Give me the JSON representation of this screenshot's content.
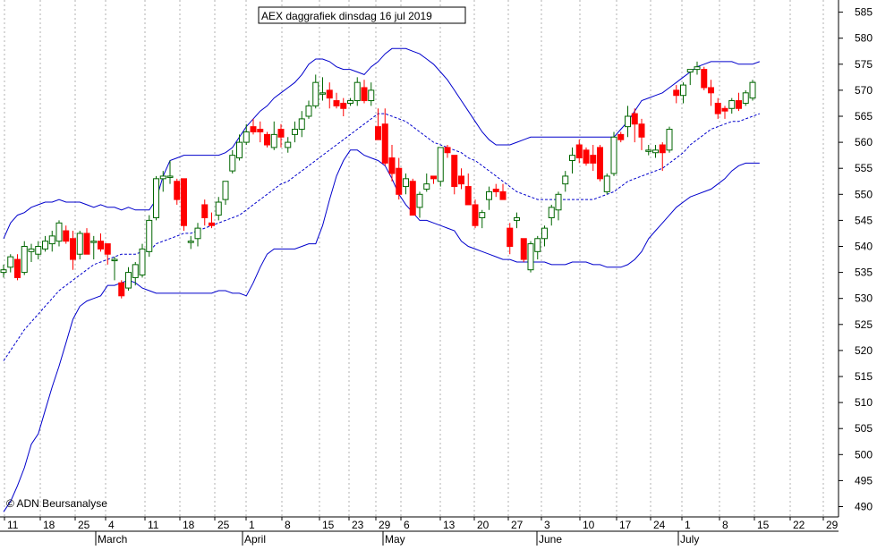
{
  "chart_data": {
    "type": "candlestick",
    "title": "AEX daggrafiek dinsdag 16 jul 2019",
    "copyright": "© ADN Beursanalyse",
    "ylim": [
      487,
      588
    ],
    "y_ticks": [
      490,
      495,
      500,
      505,
      510,
      515,
      520,
      525,
      530,
      535,
      540,
      545,
      550,
      555,
      560,
      565,
      570,
      575,
      580,
      585
    ],
    "y_tick_labels": [
      "490",
      "495",
      "500",
      "505",
      "510",
      "515",
      "520",
      "525",
      "530",
      "535",
      "540",
      "545",
      "550",
      "555",
      "560",
      "565",
      "570",
      "575",
      "580",
      "585"
    ],
    "x_day_labels": [
      "11",
      "18",
      "25",
      "4",
      "11",
      "18",
      "25",
      "1",
      "8",
      "15",
      "23",
      "29",
      "6",
      "13",
      "20",
      "27",
      "3",
      "10",
      "17",
      "24",
      "1",
      "8",
      "15",
      "22",
      "29"
    ],
    "x_month_labels": [
      "March",
      "April",
      "May",
      "June",
      "July"
    ],
    "grid": true,
    "colors": {
      "up": "#006600",
      "down": "#ff0000",
      "band": "#0000cc",
      "grid": "#b0b0b0"
    },
    "candles": [
      [
        535.0,
        536.5,
        534.0,
        535.5
      ],
      [
        536.0,
        538.5,
        535.0,
        538.0
      ],
      [
        537.5,
        538.5,
        533.5,
        534.0
      ],
      [
        535.0,
        541.0,
        534.5,
        540.0
      ],
      [
        539.0,
        540.5,
        537.0,
        539.5
      ],
      [
        538.5,
        541.0,
        537.5,
        540.0
      ],
      [
        539.5,
        542.0,
        539.0,
        541.0
      ],
      [
        540.5,
        543.0,
        539.0,
        542.0
      ],
      [
        541.0,
        545.0,
        540.0,
        544.5
      ],
      [
        543.0,
        544.0,
        540.5,
        541.0
      ],
      [
        541.5,
        543.0,
        535.5,
        537.5
      ],
      [
        538.5,
        543.0,
        537.5,
        542.5
      ],
      [
        542.5,
        543.5,
        538.5,
        538.5
      ],
      [
        541.0,
        542.0,
        537.5,
        541.0
      ],
      [
        541.0,
        542.5,
        539.0,
        539.5
      ],
      [
        540.5,
        540.5,
        536.5,
        538.5
      ],
      [
        537.5,
        538.0,
        533.5,
        537.5
      ],
      [
        533.0,
        533.5,
        530.0,
        530.5
      ],
      [
        532.0,
        536.0,
        531.5,
        535.0
      ],
      [
        534.0,
        537.0,
        532.5,
        536.5
      ],
      [
        534.5,
        540.5,
        534.0,
        539.5
      ],
      [
        539.0,
        546.0,
        538.0,
        545.0
      ],
      [
        545.5,
        553.5,
        545.0,
        553.0
      ],
      [
        553.0,
        554.5,
        550.5,
        553.5
      ],
      [
        553.5,
        556.5,
        552.0,
        553.5
      ],
      [
        552.5,
        553.0,
        548.0,
        549.0
      ],
      [
        553.0,
        553.0,
        543.0,
        544.0
      ],
      [
        541.0,
        542.0,
        539.5,
        541.0
      ],
      [
        541.5,
        544.5,
        540.0,
        543.5
      ],
      [
        548.0,
        549.0,
        544.0,
        545.5
      ],
      [
        544.5,
        546.5,
        543.5,
        544.0
      ],
      [
        546.0,
        549.5,
        545.0,
        548.5
      ],
      [
        549.0,
        552.5,
        548.0,
        552.5
      ],
      [
        554.5,
        558.5,
        554.0,
        557.5
      ],
      [
        557.0,
        561.5,
        556.5,
        560.0
      ],
      [
        560.0,
        563.5,
        559.5,
        562.0
      ],
      [
        563.0,
        564.5,
        561.5,
        562.0
      ],
      [
        562.5,
        564.0,
        560.0,
        562.0
      ],
      [
        561.5,
        562.0,
        559.0,
        559.5
      ],
      [
        559.0,
        564.0,
        558.5,
        561.5
      ],
      [
        562.5,
        563.5,
        559.0,
        561.0
      ],
      [
        559.0,
        561.0,
        558.0,
        560.0
      ],
      [
        561.5,
        564.0,
        560.0,
        562.5
      ],
      [
        562.5,
        566.0,
        561.0,
        564.5
      ],
      [
        565.0,
        568.0,
        564.5,
        567.0
      ],
      [
        567.0,
        573.0,
        566.5,
        571.5
      ],
      [
        569.5,
        572.5,
        568.0,
        569.5
      ],
      [
        570.0,
        571.5,
        566.5,
        568.5
      ],
      [
        568.0,
        569.5,
        566.5,
        567.0
      ],
      [
        567.5,
        568.5,
        565.0,
        566.5
      ],
      [
        567.5,
        568.5,
        567.0,
        568.0
      ],
      [
        568.0,
        572.5,
        567.0,
        571.5
      ],
      [
        570.5,
        572.0,
        567.5,
        568.0
      ],
      [
        568.0,
        571.5,
        567.0,
        570.0
      ],
      [
        563.0,
        566.5,
        560.5,
        560.5
      ],
      [
        563.5,
        566.5,
        555.5,
        556.0
      ],
      [
        557.0,
        559.5,
        552.5,
        554.0
      ],
      [
        555.0,
        557.0,
        549.0,
        550.0
      ],
      [
        551.5,
        554.0,
        550.0,
        553.0
      ],
      [
        552.5,
        553.0,
        546.0,
        546.0
      ],
      [
        547.5,
        550.5,
        545.5,
        550.0
      ],
      [
        551.0,
        554.0,
        550.5,
        552.0
      ],
      [
        553.5,
        553.5,
        552.0,
        553.0
      ],
      [
        552.5,
        559.0,
        551.5,
        559.0
      ],
      [
        559.0,
        559.5,
        557.0,
        558.0
      ],
      [
        557.5,
        557.5,
        550.0,
        551.5
      ],
      [
        553.5,
        555.0,
        551.0,
        552.0
      ],
      [
        551.5,
        554.0,
        548.0,
        548.0
      ],
      [
        548.0,
        549.0,
        543.5,
        544.0
      ],
      [
        545.5,
        547.0,
        543.5,
        546.5
      ],
      [
        549.0,
        551.5,
        547.0,
        550.5
      ],
      [
        551.0,
        552.0,
        549.5,
        550.5
      ],
      [
        550.5,
        552.0,
        549.0,
        549.0
      ],
      [
        543.5,
        544.5,
        538.5,
        540.0
      ],
      [
        545.0,
        546.5,
        543.5,
        545.5
      ],
      [
        541.5,
        541.5,
        537.0,
        537.5
      ],
      [
        535.5,
        541.0,
        535.0,
        540.5
      ],
      [
        539.0,
        542.0,
        537.5,
        541.5
      ],
      [
        541.5,
        544.0,
        540.0,
        543.5
      ],
      [
        545.5,
        548.0,
        544.0,
        547.5
      ],
      [
        547.0,
        550.5,
        545.0,
        550.0
      ],
      [
        552.0,
        554.5,
        550.5,
        553.5
      ],
      [
        556.5,
        559.0,
        554.0,
        557.5
      ],
      [
        559.5,
        560.5,
        556.0,
        557.0
      ],
      [
        558.5,
        559.0,
        555.5,
        556.0
      ],
      [
        557.5,
        559.5,
        554.5,
        556.0
      ],
      [
        559.0,
        559.5,
        552.5,
        553.0
      ],
      [
        550.5,
        554.0,
        550.0,
        553.5
      ],
      [
        554.0,
        562.0,
        553.5,
        561.0
      ],
      [
        561.5,
        562.0,
        560.0,
        560.5
      ],
      [
        563.0,
        567.0,
        561.0,
        565.0
      ],
      [
        565.5,
        566.5,
        560.0,
        563.5
      ],
      [
        563.5,
        564.5,
        558.5,
        561.0
      ],
      [
        558.5,
        559.5,
        557.5,
        558.5
      ],
      [
        558.0,
        559.5,
        557.0,
        558.5
      ],
      [
        559.5,
        560.0,
        554.5,
        558.0
      ],
      [
        558.5,
        563.0,
        558.0,
        562.5
      ],
      [
        570.0,
        571.0,
        567.5,
        569.0
      ],
      [
        569.0,
        571.5,
        567.5,
        571.0
      ],
      [
        573.5,
        574.0,
        571.0,
        574.0
      ],
      [
        574.0,
        575.5,
        573.0,
        574.5
      ],
      [
        574.0,
        574.5,
        570.0,
        570.5
      ],
      [
        570.5,
        572.0,
        567.0,
        569.5
      ],
      [
        567.5,
        568.5,
        564.5,
        565.5
      ],
      [
        566.5,
        567.0,
        564.5,
        566.0
      ],
      [
        566.5,
        568.5,
        565.5,
        568.0
      ],
      [
        568.0,
        569.5,
        566.0,
        566.5
      ],
      [
        567.5,
        570.0,
        567.0,
        569.5
      ],
      [
        568.5,
        572.0,
        568.0,
        571.5
      ]
    ],
    "series": [
      {
        "values": [
          541.5,
          544.5,
          546.0,
          546.5,
          547.5,
          548.0,
          548.5,
          548.5,
          549.0,
          548.5,
          548.5,
          548.5,
          548.0,
          547.5,
          548.0,
          547.5,
          547.5,
          547.0,
          547.5,
          547.0,
          547.0,
          547.0,
          549.0,
          553.5,
          556.5,
          557.0,
          557.5,
          557.5,
          557.5,
          557.5,
          557.5,
          557.5,
          558.0,
          559.0,
          561.0,
          563.0,
          564.5,
          566.0,
          567.0,
          568.5,
          569.5,
          570.5,
          571.5,
          573.0,
          575.0,
          576.0,
          576.0,
          575.5,
          574.5,
          574.0,
          574.0,
          573.5,
          573.0,
          574.5,
          575.5,
          577.0,
          578.0,
          578.0,
          578.0,
          577.5,
          577.0,
          576.0,
          575.0,
          573.5,
          572.0,
          570.0,
          568.0,
          566.0,
          564.0,
          562.0,
          560.5,
          559.5,
          559.5,
          559.5,
          560.0,
          560.5,
          561.0,
          561.0,
          561.0,
          561.0,
          561.0,
          561.0,
          561.0,
          561.0,
          561.0,
          561.0,
          561.0,
          561.0,
          561.0,
          562.5,
          564.0,
          566.0,
          568.0,
          568.5,
          569.0,
          569.5,
          570.5,
          571.5,
          572.5,
          573.5,
          574.5,
          575.0,
          575.5,
          575.5,
          575.5,
          575.5,
          575.0,
          575.0,
          575.0,
          575.5
        ]
      },
      {
        "values": [
          518.0,
          520.0,
          522.0,
          524.0,
          525.5,
          527.0,
          528.5,
          530.0,
          531.5,
          532.5,
          533.5,
          534.5,
          535.5,
          536.5,
          537.0,
          537.5,
          538.0,
          538.5,
          538.5,
          538.5,
          539.0,
          539.0,
          540.5,
          541.0,
          541.5,
          542.0,
          542.5,
          542.5,
          543.0,
          543.5,
          544.0,
          544.5,
          545.0,
          545.5,
          546.0,
          547.0,
          548.0,
          549.0,
          550.0,
          551.0,
          552.0,
          552.5,
          553.5,
          554.5,
          555.5,
          556.5,
          557.5,
          558.5,
          559.5,
          560.5,
          561.5,
          562.5,
          563.5,
          564.5,
          565.5,
          565.5,
          565.0,
          564.5,
          564.0,
          563.0,
          562.0,
          561.0,
          560.0,
          559.5,
          559.0,
          558.5,
          558.0,
          557.0,
          556.5,
          555.5,
          554.5,
          553.5,
          552.5,
          551.5,
          550.5,
          550.0,
          549.5,
          549.0,
          549.0,
          549.0,
          549.0,
          549.0,
          549.0,
          549.0,
          549.0,
          549.0,
          549.5,
          550.0,
          550.5,
          551.5,
          552.5,
          553.0,
          553.5,
          554.0,
          554.5,
          555.0,
          556.0,
          557.0,
          558.0,
          559.5,
          560.5,
          561.5,
          562.5,
          563.0,
          563.5,
          564.0,
          564.0,
          564.5,
          565.0,
          565.5
        ]
      },
      {
        "values": [
          489.0,
          491.0,
          494.0,
          497.5,
          502.0,
          504.0,
          508.5,
          513.0,
          517.0,
          521.5,
          526.0,
          528.5,
          529.5,
          530.0,
          530.5,
          532.5,
          532.5,
          533.0,
          533.5,
          533.0,
          532.0,
          531.5,
          531.0,
          531.0,
          531.0,
          531.0,
          531.0,
          531.0,
          531.0,
          531.0,
          531.0,
          531.5,
          531.5,
          531.0,
          531.0,
          530.5,
          533.0,
          536.0,
          538.5,
          539.5,
          539.5,
          539.5,
          539.5,
          540.0,
          540.5,
          540.5,
          544.0,
          549.0,
          553.5,
          556.5,
          558.5,
          558.5,
          557.5,
          557.0,
          556.5,
          555.5,
          553.0,
          550.0,
          548.0,
          546.5,
          545.0,
          545.0,
          544.5,
          544.0,
          543.5,
          543.0,
          541.0,
          540.0,
          539.5,
          539.0,
          538.5,
          538.0,
          537.5,
          537.5,
          537.0,
          537.0,
          537.0,
          537.0,
          537.0,
          536.5,
          536.5,
          536.5,
          537.0,
          537.0,
          537.0,
          536.5,
          536.5,
          536.0,
          536.0,
          536.0,
          536.5,
          537.5,
          539.0,
          541.5,
          543.0,
          544.5,
          546.0,
          547.5,
          548.5,
          549.5,
          550.0,
          550.5,
          551.0,
          552.0,
          553.0,
          554.5,
          555.5,
          556.0,
          556.0,
          556.0
        ]
      }
    ]
  }
}
